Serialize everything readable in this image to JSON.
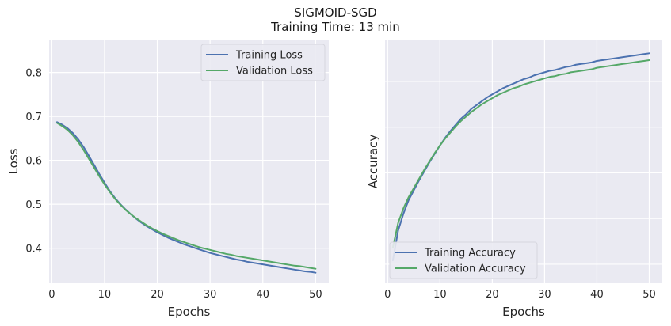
{
  "figure": {
    "title": "SIGMOID-SGD",
    "subtitle": "Training Time: 13 min"
  },
  "colors": {
    "background": "#eaeaf2",
    "grid": "#ffffff",
    "training": "#4c72b0",
    "validation": "#55a868"
  },
  "chart_data": [
    {
      "type": "line",
      "title": "",
      "xlabel": "Epochs",
      "ylabel": "Loss",
      "xlim": [
        -0.5,
        52.5
      ],
      "ylim": [
        0.32,
        0.875
      ],
      "xticks": [
        0,
        10,
        20,
        30,
        40,
        50
      ],
      "yticks": [
        0.4,
        0.5,
        0.6,
        0.7,
        0.8
      ],
      "ytick_labels": [
        "0.4",
        "0.5",
        "0.6",
        "0.7",
        "0.8"
      ],
      "grid": true,
      "legend": "upper-right",
      "x": [
        1,
        2,
        3,
        4,
        5,
        6,
        7,
        8,
        9,
        10,
        11,
        12,
        13,
        14,
        15,
        16,
        17,
        18,
        19,
        20,
        21,
        22,
        23,
        24,
        25,
        26,
        27,
        28,
        29,
        30,
        31,
        32,
        33,
        34,
        35,
        36,
        37,
        38,
        39,
        40,
        41,
        42,
        43,
        44,
        45,
        46,
        47,
        48,
        49,
        50
      ],
      "series": [
        {
          "name": "Training Loss",
          "color_key": "training",
          "values": [
            0.687,
            0.681,
            0.673,
            0.662,
            0.648,
            0.631,
            0.611,
            0.59,
            0.569,
            0.549,
            0.53,
            0.514,
            0.5,
            0.488,
            0.477,
            0.467,
            0.458,
            0.45,
            0.443,
            0.436,
            0.43,
            0.424,
            0.419,
            0.414,
            0.409,
            0.405,
            0.401,
            0.397,
            0.393,
            0.389,
            0.386,
            0.383,
            0.38,
            0.377,
            0.374,
            0.372,
            0.369,
            0.367,
            0.365,
            0.363,
            0.361,
            0.359,
            0.357,
            0.355,
            0.353,
            0.351,
            0.349,
            0.347,
            0.346,
            0.344
          ]
        },
        {
          "name": "Validation Loss",
          "color_key": "validation",
          "values": [
            0.685,
            0.678,
            0.669,
            0.657,
            0.642,
            0.624,
            0.604,
            0.584,
            0.564,
            0.545,
            0.528,
            0.512,
            0.499,
            0.487,
            0.477,
            0.468,
            0.46,
            0.452,
            0.445,
            0.439,
            0.433,
            0.428,
            0.423,
            0.418,
            0.414,
            0.41,
            0.406,
            0.402,
            0.399,
            0.396,
            0.393,
            0.39,
            0.387,
            0.385,
            0.382,
            0.38,
            0.378,
            0.376,
            0.374,
            0.372,
            0.37,
            0.368,
            0.366,
            0.364,
            0.362,
            0.36,
            0.359,
            0.357,
            0.355,
            0.353
          ]
        }
      ]
    },
    {
      "type": "line",
      "title": "",
      "xlabel": "Epochs",
      "ylabel": "Accuracy",
      "xlim": [
        -0.5,
        52.5
      ],
      "ylim": [
        0.545,
        0.865
      ],
      "xticks": [
        0,
        10,
        20,
        30,
        40,
        50
      ],
      "yticks": [],
      "ytick_labels": [],
      "ygrid": [
        0.57,
        0.63,
        0.69,
        0.75,
        0.81
      ],
      "grid": true,
      "legend": "lower-left",
      "x": [
        1,
        2,
        3,
        4,
        5,
        6,
        7,
        8,
        9,
        10,
        11,
        12,
        13,
        14,
        15,
        16,
        17,
        18,
        19,
        20,
        21,
        22,
        23,
        24,
        25,
        26,
        27,
        28,
        29,
        30,
        31,
        32,
        33,
        34,
        35,
        36,
        37,
        38,
        39,
        40,
        41,
        42,
        43,
        44,
        45,
        46,
        47,
        48,
        49,
        50
      ],
      "series": [
        {
          "name": "Training Accuracy",
          "color_key": "training",
          "values": [
            0.575,
            0.614,
            0.636,
            0.654,
            0.667,
            0.68,
            0.692,
            0.704,
            0.715,
            0.726,
            0.736,
            0.745,
            0.753,
            0.761,
            0.767,
            0.774,
            0.779,
            0.784,
            0.789,
            0.793,
            0.797,
            0.801,
            0.804,
            0.807,
            0.81,
            0.813,
            0.815,
            0.818,
            0.82,
            0.822,
            0.824,
            0.825,
            0.827,
            0.829,
            0.83,
            0.832,
            0.833,
            0.834,
            0.835,
            0.837,
            0.838,
            0.839,
            0.84,
            0.841,
            0.842,
            0.843,
            0.844,
            0.845,
            0.846,
            0.847
          ]
        },
        {
          "name": "Validation Accuracy",
          "color_key": "validation",
          "values": [
            0.592,
            0.624,
            0.643,
            0.658,
            0.67,
            0.682,
            0.694,
            0.705,
            0.716,
            0.726,
            0.735,
            0.743,
            0.751,
            0.758,
            0.764,
            0.77,
            0.775,
            0.78,
            0.784,
            0.788,
            0.792,
            0.795,
            0.798,
            0.801,
            0.803,
            0.806,
            0.808,
            0.81,
            0.812,
            0.814,
            0.816,
            0.817,
            0.819,
            0.82,
            0.822,
            0.823,
            0.824,
            0.825,
            0.826,
            0.828,
            0.829,
            0.83,
            0.831,
            0.832,
            0.833,
            0.834,
            0.835,
            0.836,
            0.837,
            0.838
          ]
        }
      ]
    }
  ]
}
